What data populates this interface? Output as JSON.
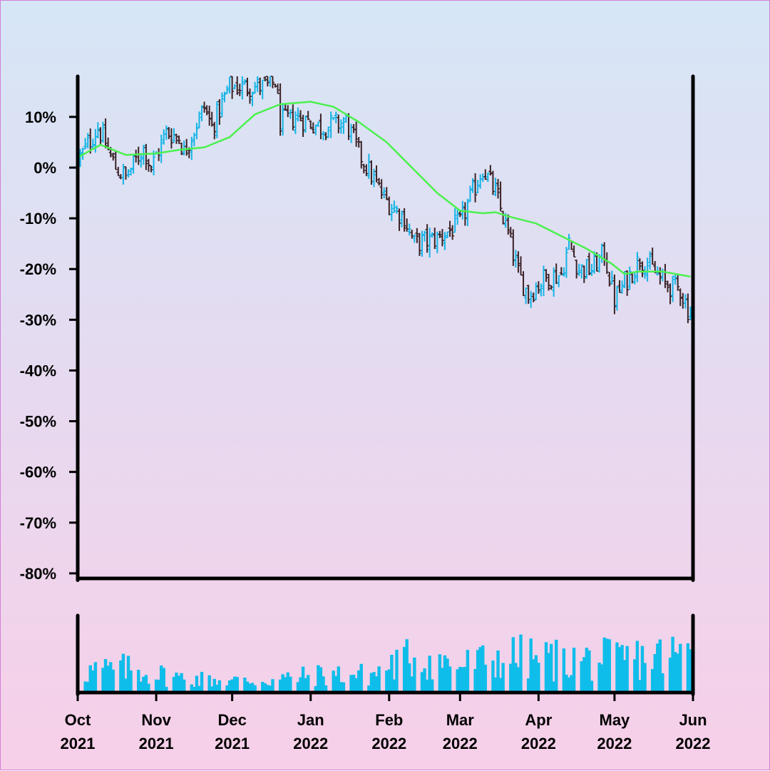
{
  "chart_data": {
    "type": "ohlc",
    "y_tick_labels": [
      "10%",
      "0%",
      "-10%",
      "-20%",
      "-30%",
      "-40%",
      "-50%",
      "-60%",
      "-70%",
      "-80%"
    ],
    "y_ticks": [
      10,
      0,
      -10,
      -20,
      -30,
      -40,
      -50,
      -60,
      -70,
      -80
    ],
    "ylim": [
      -81,
      18
    ],
    "x_range": [
      "2021-10-01",
      "2022-06-01"
    ],
    "x_ticks": [
      {
        "date": "2021-10-01",
        "label_month": "Oct",
        "label_year": "2021"
      },
      {
        "date": "2021-11-01",
        "label_month": "Nov",
        "label_year": "2021"
      },
      {
        "date": "2021-12-01",
        "label_month": "Dec",
        "label_year": "2021"
      },
      {
        "date": "2022-01-01",
        "label_month": "Jan",
        "label_year": "2022"
      },
      {
        "date": "2022-02-01",
        "label_month": "Feb",
        "label_year": "2022"
      },
      {
        "date": "2022-03-01",
        "label_month": "Mar",
        "label_year": "2022"
      },
      {
        "date": "2022-04-01",
        "label_month": "Apr",
        "label_year": "2022"
      },
      {
        "date": "2022-05-01",
        "label_month": "May",
        "label_year": "2022"
      },
      {
        "date": "2022-06-01",
        "label_month": "Jun",
        "label_year": "2022"
      }
    ],
    "price_path": [
      [
        "2021-10-02",
        2
      ],
      [
        "2021-10-09",
        8
      ],
      [
        "2021-10-16",
        0
      ],
      [
        "2021-10-20",
        -2
      ],
      [
        "2021-10-27",
        4
      ],
      [
        "2021-10-30",
        0
      ],
      [
        "2021-11-05",
        7
      ],
      [
        "2021-11-10",
        6
      ],
      [
        "2021-11-12",
        3
      ],
      [
        "2021-11-20",
        12
      ],
      [
        "2021-11-23",
        8
      ],
      [
        "2021-11-30",
        16
      ],
      [
        "2021-12-15",
        16
      ],
      [
        "2021-12-18",
        17
      ],
      [
        "2021-12-20",
        9
      ],
      [
        "2021-12-27",
        10
      ],
      [
        "2022-01-05",
        8
      ],
      [
        "2022-01-15",
        9
      ],
      [
        "2022-01-20",
        3
      ],
      [
        "2022-01-30",
        -6
      ],
      [
        "2022-02-07",
        -10
      ],
      [
        "2022-02-11",
        -15
      ],
      [
        "2022-02-20",
        -14
      ],
      [
        "2022-03-01",
        -11
      ],
      [
        "2022-03-06",
        -5
      ],
      [
        "2022-03-10",
        0
      ],
      [
        "2022-03-15",
        -5
      ],
      [
        "2022-03-20",
        -13
      ],
      [
        "2022-03-24",
        -21
      ],
      [
        "2022-03-28",
        -25
      ],
      [
        "2022-04-03",
        -22
      ],
      [
        "2022-04-10",
        -21
      ],
      [
        "2022-04-13",
        -15
      ],
      [
        "2022-04-17",
        -20
      ],
      [
        "2022-04-22",
        -20
      ],
      [
        "2022-04-27",
        -17
      ],
      [
        "2022-05-01",
        -26
      ],
      [
        "2022-05-06",
        -22
      ],
      [
        "2022-05-11",
        -18
      ],
      [
        "2022-05-14",
        -19
      ],
      [
        "2022-05-21",
        -23
      ],
      [
        "2022-05-27",
        -24
      ],
      [
        "2022-05-30",
        -28
      ],
      [
        "2022-06-01",
        -28
      ]
    ],
    "gap_after": "2021-12-19",
    "moving_average": [
      [
        "2021-10-01",
        2
      ],
      [
        "2021-10-10",
        4.5
      ],
      [
        "2021-10-20",
        2.5
      ],
      [
        "2021-11-01",
        2.8
      ],
      [
        "2021-11-10",
        3.5
      ],
      [
        "2021-11-20",
        4
      ],
      [
        "2021-11-30",
        6
      ],
      [
        "2021-12-10",
        10.5
      ],
      [
        "2021-12-20",
        12.5
      ],
      [
        "2022-01-01",
        13
      ],
      [
        "2022-01-10",
        12
      ],
      [
        "2022-01-20",
        9
      ],
      [
        "2022-01-31",
        5
      ],
      [
        "2022-02-10",
        0
      ],
      [
        "2022-02-20",
        -5
      ],
      [
        "2022-03-01",
        -8.5
      ],
      [
        "2022-03-10",
        -9
      ],
      [
        "2022-03-15",
        -8.8
      ],
      [
        "2022-03-20",
        -9.6
      ],
      [
        "2022-03-31",
        -11
      ],
      [
        "2022-04-10",
        -13.5
      ],
      [
        "2022-04-20",
        -16
      ],
      [
        "2022-04-30",
        -19
      ],
      [
        "2022-05-05",
        -21
      ],
      [
        "2022-05-10",
        -20.5
      ],
      [
        "2022-05-20",
        -20.5
      ],
      [
        "2022-05-31",
        -21.5
      ]
    ],
    "volume_profile": [
      [
        "2021-10-01",
        0.35
      ],
      [
        "2021-10-20",
        0.4
      ],
      [
        "2021-11-10",
        0.25
      ],
      [
        "2021-11-30",
        0.2
      ],
      [
        "2021-12-15",
        0.2
      ],
      [
        "2022-01-05",
        0.3
      ],
      [
        "2022-01-25",
        0.3
      ],
      [
        "2022-02-10",
        0.6
      ],
      [
        "2022-03-01",
        0.45
      ],
      [
        "2022-03-20",
        0.6
      ],
      [
        "2022-04-10",
        0.55
      ],
      [
        "2022-05-01",
        0.55
      ],
      [
        "2022-05-31",
        0.65
      ]
    ],
    "volume_ylim": [
      0,
      1
    ],
    "colors": {
      "up": "#14b4e6",
      "down": "#3b2226",
      "moving_average": "#4cf04e",
      "volume": "#0fbdea",
      "axis": "#000000"
    }
  }
}
